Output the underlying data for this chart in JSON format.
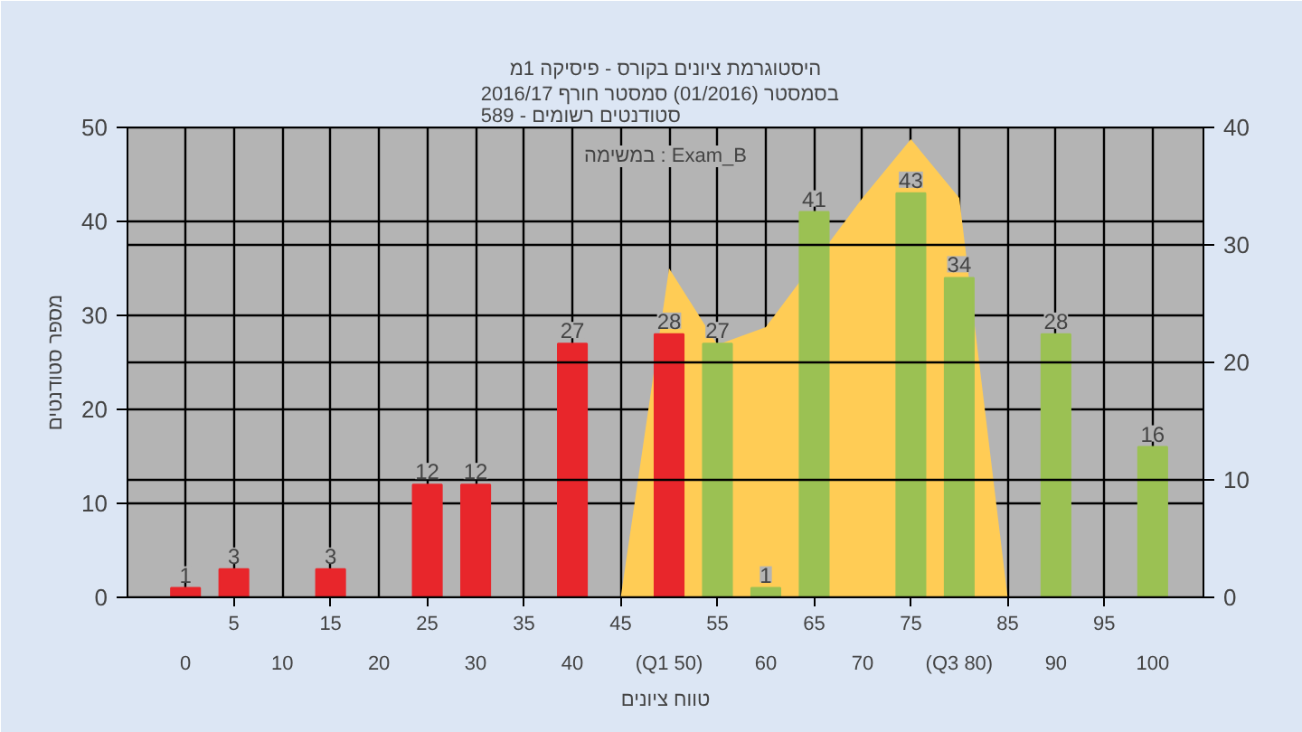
{
  "chart_data": {
    "type": "bar",
    "title": "היסטוגרמת ציונים בקורס - פיסיקה 1מ",
    "subtitle": "בסמסטר  (01/2016)  סמסטר חורף 2016/17\nסטודנטים רשומים - 589",
    "xlabel": "טווח ציונים",
    "ylabel": "מספר סטודנטים",
    "annotations": [
      "במשימה : Exam_B"
    ],
    "categories": [
      "0",
      "5",
      "10",
      "15",
      "20",
      "25",
      "30",
      "35",
      "40",
      "45",
      "(Q1 50)",
      "55",
      "60",
      "65",
      "70",
      "75",
      "(Q3 80)",
      "85",
      "90",
      "95",
      "100"
    ],
    "series": [
      {
        "type": "area",
        "axis": "y2",
        "color": "#ffcc55",
        "values": [
          null,
          null,
          null,
          null,
          null,
          null,
          null,
          null,
          null,
          0,
          28,
          21.5,
          23,
          null,
          34,
          39,
          34,
          0,
          null,
          null,
          null
        ]
      },
      {
        "colors": [
          "#e8262b",
          "#e8262b",
          "#e8262b",
          "#e8262b",
          "#e8262b",
          "#e8262b",
          "#e8262b",
          "#e8262b",
          "#e8262b",
          "#e8262b",
          "#e8262b",
          "#9bc153",
          "#9bc153",
          "#9bc153",
          "#9bc153",
          "#9bc153",
          "#9bc153",
          "#9bc153",
          "#9bc153",
          "#9bc153",
          "#9bc153"
        ],
        "values": [
          1,
          3,
          null,
          3,
          null,
          12,
          12,
          null,
          27,
          null,
          28,
          27,
          1,
          41,
          null,
          43,
          34,
          null,
          28,
          null,
          16
        ],
        "value_labels": [
          "1",
          "3",
          null,
          "3",
          null,
          "12",
          "12",
          null,
          "27",
          null,
          "28",
          "27",
          "1",
          "41",
          null,
          "43",
          "34",
          null,
          "28",
          null,
          "16"
        ]
      }
    ],
    "ylim": [
      0,
      50
    ],
    "yticks": [
      0,
      10,
      20,
      30,
      40,
      50
    ],
    "y2lim": [
      0,
      40
    ],
    "y2ticks": [
      0,
      10,
      20,
      30,
      40
    ],
    "grid": true
  }
}
